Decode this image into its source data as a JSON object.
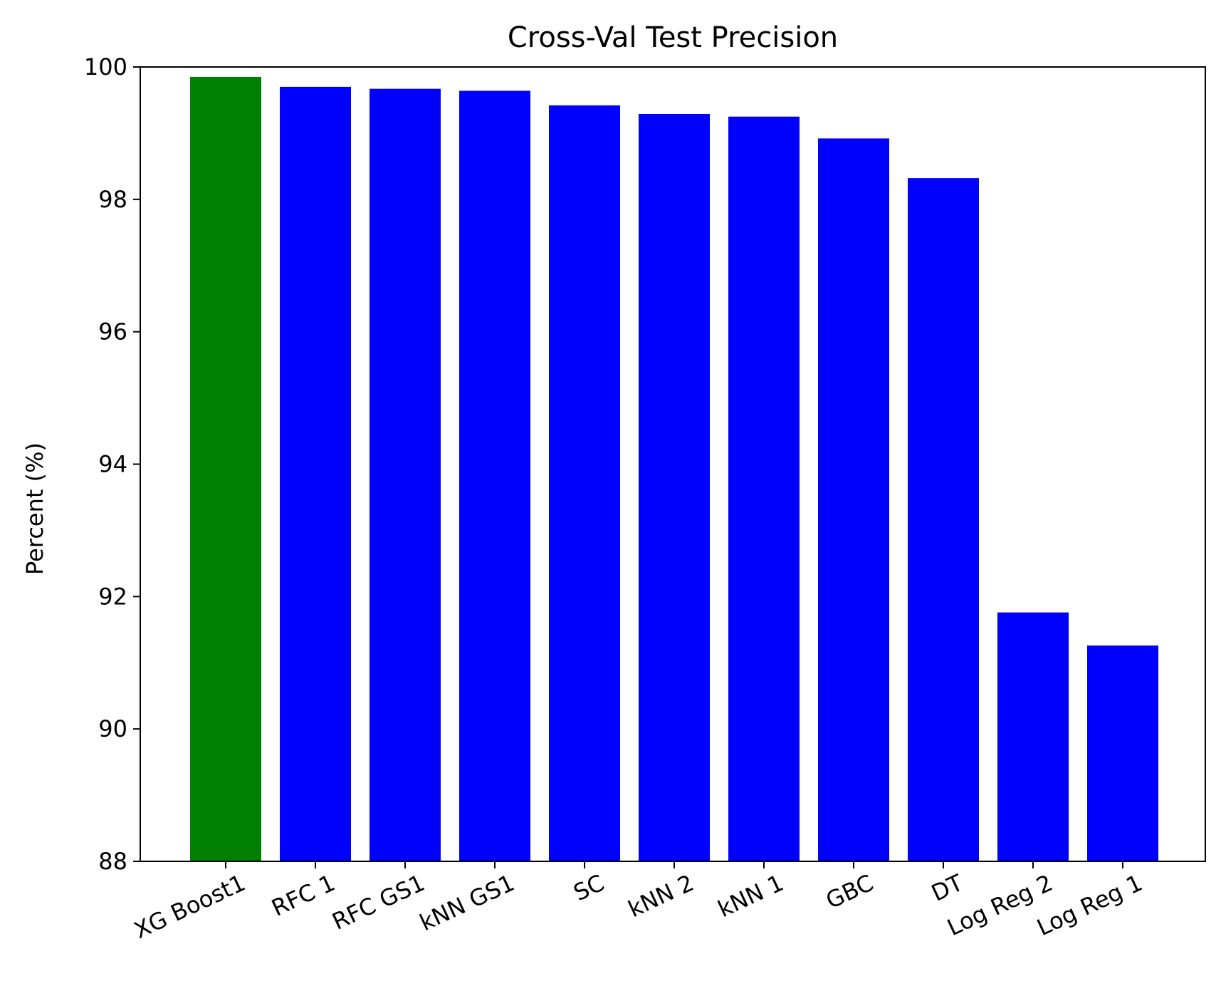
{
  "chart_data": {
    "type": "bar",
    "title": "Cross-Val Test Precision",
    "xlabel": "",
    "ylabel": "Percent (%)",
    "ylim": [
      88,
      100
    ],
    "yticks": [
      88,
      90,
      92,
      94,
      96,
      98,
      100
    ],
    "grid": false,
    "categories": [
      "XG Boost1",
      "RFC 1",
      "RFC GS1",
      "kNN GS1",
      "SC",
      "kNN 2",
      "kNN 1",
      "GBC",
      "DT",
      "Log Reg 2",
      "Log Reg 1"
    ],
    "values": [
      99.85,
      99.7,
      99.67,
      99.64,
      99.42,
      99.29,
      99.25,
      98.92,
      98.32,
      91.76,
      91.26
    ],
    "colors": [
      "#008000",
      "#0000ff",
      "#0000ff",
      "#0000ff",
      "#0000ff",
      "#0000ff",
      "#0000ff",
      "#0000ff",
      "#0000ff",
      "#0000ff",
      "#0000ff"
    ]
  }
}
